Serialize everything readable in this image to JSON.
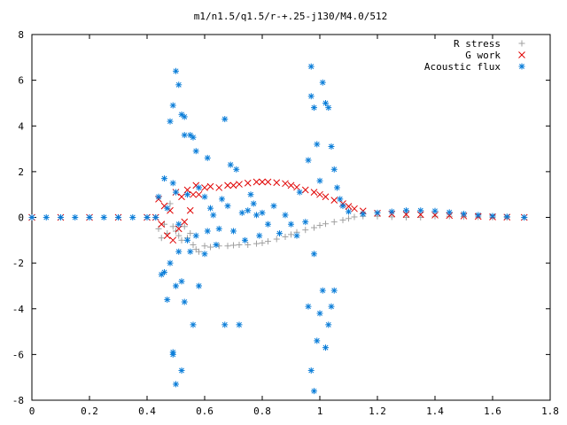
{
  "chart_data": {
    "type": "scatter",
    "title": "m1/n1.5/q1.5/r-+.25-j130/M4.0/512",
    "xlabel": "",
    "ylabel": "",
    "xlim": [
      0,
      1.8
    ],
    "ylim": [
      -8,
      8
    ],
    "xticks": [
      "0",
      "0.2",
      "0.4",
      "0.6",
      "0.8",
      "1",
      "1.2",
      "1.4",
      "1.6",
      "1.8"
    ],
    "yticks": [
      "8",
      "6",
      "4",
      "2",
      "0",
      "-2",
      "-4",
      "-6",
      "-8"
    ],
    "grid": false,
    "legend_position": "top-right",
    "series": [
      {
        "name": "R stress",
        "marker": "+",
        "color": "#a0a0a0",
        "points": [
          [
            0.0,
            0
          ],
          [
            0.1,
            0
          ],
          [
            0.2,
            0
          ],
          [
            0.3,
            0
          ],
          [
            0.4,
            0
          ],
          [
            0.43,
            0
          ],
          [
            0.44,
            -0.5
          ],
          [
            0.45,
            -0.9
          ],
          [
            0.46,
            -0.3
          ],
          [
            0.47,
            -0.7
          ],
          [
            0.48,
            0.6
          ],
          [
            0.49,
            -0.4
          ],
          [
            0.5,
            -0.6
          ],
          [
            0.51,
            -0.8
          ],
          [
            0.52,
            -1.0
          ],
          [
            0.53,
            -0.4
          ],
          [
            0.54,
            -0.9
          ],
          [
            0.55,
            -0.7
          ],
          [
            0.56,
            -1.2
          ],
          [
            0.57,
            -1.4
          ],
          [
            0.58,
            -1.5
          ],
          [
            0.6,
            -1.25
          ],
          [
            0.62,
            -1.3
          ],
          [
            0.65,
            -1.25
          ],
          [
            0.68,
            -1.25
          ],
          [
            0.7,
            -1.22
          ],
          [
            0.72,
            -1.2
          ],
          [
            0.75,
            -1.2
          ],
          [
            0.78,
            -1.15
          ],
          [
            0.8,
            -1.12
          ],
          [
            0.82,
            -1.05
          ],
          [
            0.85,
            -0.95
          ],
          [
            0.88,
            -0.85
          ],
          [
            0.9,
            -0.75
          ],
          [
            0.92,
            -0.65
          ],
          [
            0.95,
            -0.55
          ],
          [
            0.98,
            -0.45
          ],
          [
            1.0,
            -0.35
          ],
          [
            1.02,
            -0.28
          ],
          [
            1.05,
            -0.2
          ],
          [
            1.08,
            -0.12
          ],
          [
            1.1,
            -0.05
          ],
          [
            1.12,
            0.02
          ],
          [
            1.15,
            0.05
          ],
          [
            1.2,
            0.05
          ],
          [
            1.25,
            0.02
          ],
          [
            1.3,
            0.0
          ],
          [
            1.35,
            0.0
          ],
          [
            1.4,
            0.05
          ],
          [
            1.45,
            0.05
          ],
          [
            1.5,
            0.03
          ],
          [
            1.55,
            0.02
          ],
          [
            1.6,
            0.0
          ],
          [
            1.65,
            0.0
          ],
          [
            1.71,
            0.0
          ]
        ]
      },
      {
        "name": "G work",
        "marker": "x",
        "color": "#e00000",
        "points": [
          [
            0.0,
            0
          ],
          [
            0.1,
            0
          ],
          [
            0.2,
            0
          ],
          [
            0.3,
            0
          ],
          [
            0.4,
            0
          ],
          [
            0.43,
            0
          ],
          [
            0.44,
            0.8
          ],
          [
            0.45,
            -0.3
          ],
          [
            0.46,
            0.5
          ],
          [
            0.47,
            -0.8
          ],
          [
            0.48,
            0.3
          ],
          [
            0.49,
            -1.0
          ],
          [
            0.5,
            1.1
          ],
          [
            0.51,
            -0.5
          ],
          [
            0.52,
            0.9
          ],
          [
            0.53,
            -0.2
          ],
          [
            0.54,
            1.2
          ],
          [
            0.55,
            0.3
          ],
          [
            0.56,
            1.0
          ],
          [
            0.57,
            1.4
          ],
          [
            0.58,
            1.0
          ],
          [
            0.6,
            1.3
          ],
          [
            0.62,
            1.35
          ],
          [
            0.65,
            1.3
          ],
          [
            0.68,
            1.4
          ],
          [
            0.7,
            1.4
          ],
          [
            0.72,
            1.45
          ],
          [
            0.75,
            1.5
          ],
          [
            0.78,
            1.55
          ],
          [
            0.8,
            1.55
          ],
          [
            0.82,
            1.55
          ],
          [
            0.85,
            1.52
          ],
          [
            0.88,
            1.48
          ],
          [
            0.9,
            1.4
          ],
          [
            0.92,
            1.32
          ],
          [
            0.95,
            1.2
          ],
          [
            0.98,
            1.1
          ],
          [
            1.0,
            1.0
          ],
          [
            1.02,
            0.9
          ],
          [
            1.05,
            0.75
          ],
          [
            1.08,
            0.6
          ],
          [
            1.1,
            0.48
          ],
          [
            1.12,
            0.38
          ],
          [
            1.15,
            0.28
          ],
          [
            1.2,
            0.18
          ],
          [
            1.25,
            0.15
          ],
          [
            1.3,
            0.13
          ],
          [
            1.35,
            0.12
          ],
          [
            1.4,
            0.1
          ],
          [
            1.45,
            0.08
          ],
          [
            1.5,
            0.06
          ],
          [
            1.55,
            0.04
          ],
          [
            1.6,
            0.02
          ],
          [
            1.65,
            0.01
          ],
          [
            1.71,
            0.0
          ]
        ]
      },
      {
        "name": "Acoustic flux",
        "marker": "*",
        "color": "#0a7dd8",
        "points": [
          [
            0.0,
            0
          ],
          [
            0.05,
            0
          ],
          [
            0.1,
            0
          ],
          [
            0.15,
            0
          ],
          [
            0.2,
            0
          ],
          [
            0.25,
            0
          ],
          [
            0.3,
            0
          ],
          [
            0.35,
            0
          ],
          [
            0.4,
            0
          ],
          [
            0.43,
            0
          ],
          [
            0.44,
            0.9
          ],
          [
            0.45,
            -2.5
          ],
          [
            0.46,
            1.7
          ],
          [
            0.46,
            -2.4
          ],
          [
            0.47,
            -3.6
          ],
          [
            0.47,
            0.4
          ],
          [
            0.48,
            4.2
          ],
          [
            0.48,
            -2.0
          ],
          [
            0.49,
            4.9
          ],
          [
            0.49,
            1.5
          ],
          [
            0.49,
            -5.9
          ],
          [
            0.49,
            -6.0
          ],
          [
            0.5,
            6.4
          ],
          [
            0.5,
            1.1
          ],
          [
            0.5,
            -3.0
          ],
          [
            0.5,
            -7.3
          ],
          [
            0.51,
            5.8
          ],
          [
            0.51,
            -0.3
          ],
          [
            0.51,
            -1.5
          ],
          [
            0.52,
            4.5
          ],
          [
            0.52,
            -2.8
          ],
          [
            0.52,
            -6.7
          ],
          [
            0.53,
            4.4
          ],
          [
            0.53,
            3.6
          ],
          [
            0.53,
            -3.7
          ],
          [
            0.54,
            1.0
          ],
          [
            0.54,
            -1.0
          ],
          [
            0.55,
            3.6
          ],
          [
            0.55,
            -1.5
          ],
          [
            0.56,
            3.5
          ],
          [
            0.56,
            -4.7
          ],
          [
            0.57,
            2.9
          ],
          [
            0.57,
            -0.8
          ],
          [
            0.58,
            1.3
          ],
          [
            0.58,
            -3.0
          ],
          [
            0.6,
            0.9
          ],
          [
            0.6,
            -1.6
          ],
          [
            0.61,
            2.6
          ],
          [
            0.61,
            -0.6
          ],
          [
            0.62,
            0.4
          ],
          [
            0.63,
            0.1
          ],
          [
            0.64,
            -1.2
          ],
          [
            0.65,
            -0.5
          ],
          [
            0.66,
            0.8
          ],
          [
            0.67,
            4.3
          ],
          [
            0.67,
            -4.7
          ],
          [
            0.68,
            0.5
          ],
          [
            0.69,
            2.3
          ],
          [
            0.7,
            -0.6
          ],
          [
            0.71,
            2.1
          ],
          [
            0.72,
            -4.7
          ],
          [
            0.73,
            0.2
          ],
          [
            0.74,
            -1.0
          ],
          [
            0.75,
            0.3
          ],
          [
            0.76,
            1.0
          ],
          [
            0.77,
            0.6
          ],
          [
            0.78,
            0.1
          ],
          [
            0.79,
            -0.8
          ],
          [
            0.8,
            0.2
          ],
          [
            0.82,
            -0.3
          ],
          [
            0.84,
            0.5
          ],
          [
            0.86,
            -0.7
          ],
          [
            0.88,
            0.1
          ],
          [
            0.9,
            -0.3
          ],
          [
            0.92,
            -0.8
          ],
          [
            0.93,
            1.1
          ],
          [
            0.95,
            -0.2
          ],
          [
            0.96,
            2.5
          ],
          [
            0.96,
            -3.9
          ],
          [
            0.97,
            6.6
          ],
          [
            0.97,
            5.3
          ],
          [
            0.97,
            -6.7
          ],
          [
            0.98,
            -7.6
          ],
          [
            0.98,
            4.8
          ],
          [
            0.98,
            -1.6
          ],
          [
            0.99,
            3.2
          ],
          [
            0.99,
            -5.4
          ],
          [
            1.0,
            1.6
          ],
          [
            1.0,
            -4.2
          ],
          [
            1.01,
            5.9
          ],
          [
            1.01,
            -3.2
          ],
          [
            1.02,
            5.0
          ],
          [
            1.02,
            -5.7
          ],
          [
            1.03,
            4.8
          ],
          [
            1.03,
            -4.7
          ],
          [
            1.04,
            3.1
          ],
          [
            1.04,
            -3.9
          ],
          [
            1.05,
            2.1
          ],
          [
            1.05,
            -3.2
          ],
          [
            1.06,
            1.3
          ],
          [
            1.07,
            0.8
          ],
          [
            1.08,
            0.5
          ],
          [
            1.1,
            0.25
          ],
          [
            1.15,
            0.15
          ],
          [
            1.2,
            0.2
          ],
          [
            1.25,
            0.25
          ],
          [
            1.3,
            0.3
          ],
          [
            1.35,
            0.3
          ],
          [
            1.4,
            0.28
          ],
          [
            1.45,
            0.22
          ],
          [
            1.5,
            0.15
          ],
          [
            1.55,
            0.1
          ],
          [
            1.6,
            0.06
          ],
          [
            1.65,
            0.03
          ],
          [
            1.71,
            0.0
          ]
        ]
      }
    ]
  }
}
